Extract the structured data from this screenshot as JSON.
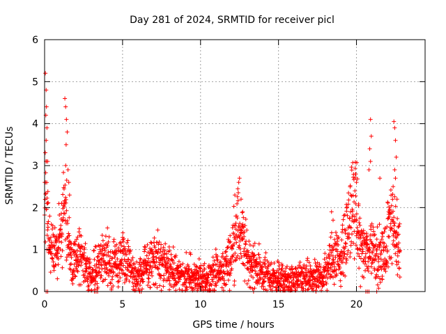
{
  "chart_data": {
    "type": "scatter",
    "title": "Day 281 of 2024, SRMTID for receiver picl",
    "xlabel": "GPS time / hours",
    "ylabel": "SRMTID / TECUs",
    "xlim": [
      0,
      24.4
    ],
    "ylim": [
      0,
      6
    ],
    "xticks": [
      "0",
      "5",
      "10",
      "15",
      "20"
    ],
    "xtick_values": [
      0,
      5,
      10,
      15,
      20
    ],
    "yticks": [
      "0",
      "1",
      "2",
      "3",
      "4",
      "5",
      "6"
    ],
    "ytick_values": [
      0,
      1,
      2,
      3,
      4,
      5,
      6
    ],
    "grid": true,
    "marker": "+",
    "marker_color": "#ff0000",
    "profile_hours": [
      0,
      0.1,
      0.3,
      0.5,
      0.8,
      1.1,
      1.4,
      1.6,
      1.8,
      2.2,
      2.6,
      3.0,
      3.5,
      4.0,
      4.5,
      5.0,
      5.5,
      6.0,
      6.5,
      7.0,
      7.5,
      8.0,
      8.5,
      9.0,
      9.5,
      10.0,
      10.5,
      11.0,
      11.5,
      12.0,
      12.3,
      12.6,
      13.0,
      13.5,
      14.0,
      14.5,
      15.0,
      15.5,
      16.0,
      16.5,
      17.0,
      17.5,
      18.0,
      18.3,
      18.6,
      19.0,
      19.3,
      19.6,
      19.9,
      20.2,
      20.5,
      20.8,
      21.0,
      21.3,
      21.6,
      21.9,
      22.2,
      22.5,
      22.8
    ],
    "profile_tecu": [
      2.0,
      2.4,
      1.2,
      0.9,
      1.1,
      1.5,
      1.9,
      1.0,
      0.5,
      1.0,
      0.6,
      0.4,
      0.7,
      0.8,
      0.6,
      0.8,
      0.5,
      0.3,
      0.6,
      0.8,
      0.7,
      0.5,
      0.45,
      0.4,
      0.35,
      0.25,
      0.35,
      0.45,
      0.5,
      0.9,
      1.6,
      1.3,
      0.8,
      0.6,
      0.45,
      0.35,
      0.3,
      0.25,
      0.25,
      0.3,
      0.3,
      0.3,
      0.45,
      0.7,
      0.9,
      0.8,
      1.2,
      1.8,
      2.1,
      1.2,
      0.9,
      1.0,
      1.1,
      0.9,
      0.8,
      0.9,
      2.0,
      1.2,
      1.0
    ],
    "spike_points": [
      [
        0.05,
        5.2
      ],
      [
        0.1,
        4.8
      ],
      [
        0.12,
        4.4
      ],
      [
        0.08,
        4.2
      ],
      [
        0.15,
        3.9
      ],
      [
        0.1,
        3.6
      ],
      [
        0.2,
        3.1
      ],
      [
        0.05,
        2.6
      ],
      [
        0.15,
        2.1
      ],
      [
        1.3,
        4.6
      ],
      [
        1.35,
        4.4
      ],
      [
        1.4,
        4.1
      ],
      [
        1.45,
        3.8
      ],
      [
        1.38,
        3.5
      ],
      [
        1.5,
        2.9
      ],
      [
        1.55,
        2.6
      ],
      [
        1.6,
        2.3
      ],
      [
        12.5,
        2.7
      ],
      [
        12.45,
        2.6
      ],
      [
        12.2,
        2.3
      ],
      [
        12.6,
        2.2
      ],
      [
        12.7,
        1.9
      ],
      [
        18.4,
        1.9
      ],
      [
        18.5,
        1.7
      ],
      [
        19.95,
        2.8
      ],
      [
        20.0,
        2.6
      ],
      [
        19.9,
        2.4
      ],
      [
        20.9,
        4.1
      ],
      [
        20.95,
        3.7
      ],
      [
        20.85,
        3.4
      ],
      [
        20.9,
        3.1
      ],
      [
        20.8,
        2.9
      ],
      [
        21.5,
        2.7
      ],
      [
        22.4,
        4.05
      ],
      [
        22.45,
        3.9
      ],
      [
        22.5,
        3.6
      ],
      [
        22.55,
        3.2
      ],
      [
        22.45,
        2.9
      ],
      [
        22.5,
        2.7
      ],
      [
        22.35,
        2.5
      ],
      [
        22.6,
        2.2
      ]
    ],
    "zero_points": [
      0.1,
      0.2,
      3.2,
      3.3,
      3.4,
      6.1,
      6.2,
      13.4,
      17.4,
      20.6,
      20.7,
      20.8,
      21.3
    ]
  }
}
